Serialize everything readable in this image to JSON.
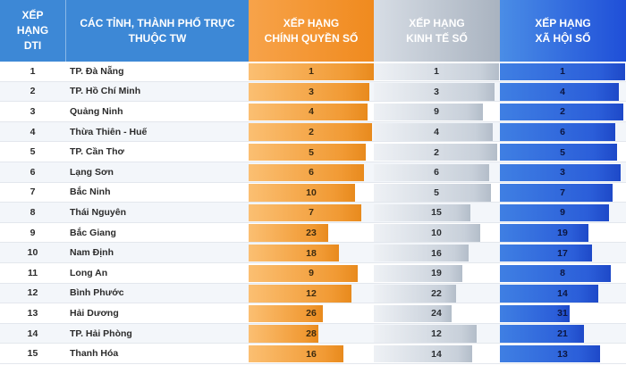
{
  "header": {
    "rank_line1": "XẾP",
    "rank_line2": "HẠNG",
    "rank_line3": "DTI",
    "name_line1": "CÁC TỈNH, THÀNH PHỐ TRỰC",
    "name_line2": "THUỘC TW",
    "gov_line1": "XẾP HẠNG",
    "gov_line2": "CHÍNH QUYỀN SỐ",
    "eco_line1": "XẾP HẠNG",
    "eco_line2": "KINH TẾ SỐ",
    "soc_line1": "XẾP HẠNG",
    "soc_line2": "XÃ HỘI SỐ"
  },
  "colors": {
    "header_blue": "#3d88d6",
    "gov_orange": "#f19a34",
    "eco_gray": "#c8d0da",
    "soc_blue": "#2b5ed9"
  },
  "chart_data": {
    "type": "table",
    "columns": [
      "Xếp hạng DTI",
      "Các tỉnh, thành phố trực thuộc TW",
      "Xếp hạng chính quyền số",
      "Xếp hạng kinh tế số",
      "Xếp hạng xã hội số"
    ],
    "rows": [
      {
        "rank": "1",
        "name": "TP. Đà Nẵng",
        "gov": 1,
        "eco": 1,
        "soc": 1
      },
      {
        "rank": "2",
        "name": "TP. Hồ Chí Minh",
        "gov": 3,
        "eco": 3,
        "soc": 4
      },
      {
        "rank": "3",
        "name": "Quảng Ninh",
        "gov": 4,
        "eco": 9,
        "soc": 2
      },
      {
        "rank": "4",
        "name": "Thừa Thiên - Huế",
        "gov": 2,
        "eco": 4,
        "soc": 6
      },
      {
        "rank": "5",
        "name": "TP. Cần Thơ",
        "gov": 5,
        "eco": 2,
        "soc": 5
      },
      {
        "rank": "6",
        "name": "Lạng Sơn",
        "gov": 6,
        "eco": 6,
        "soc": 3
      },
      {
        "rank": "7",
        "name": "Bắc Ninh",
        "gov": 10,
        "eco": 5,
        "soc": 7
      },
      {
        "rank": "8",
        "name": "Thái Nguyên",
        "gov": 7,
        "eco": 15,
        "soc": 9
      },
      {
        "rank": "9",
        "name": "Bắc Giang",
        "gov": 23,
        "eco": 10,
        "soc": 19
      },
      {
        "rank": "10",
        "name": "Nam Định",
        "gov": 18,
        "eco": 16,
        "soc": 17
      },
      {
        "rank": "11",
        "name": "Long An",
        "gov": 9,
        "eco": 19,
        "soc": 8
      },
      {
        "rank": "12",
        "name": "Bình Phước",
        "gov": 12,
        "eco": 22,
        "soc": 14
      },
      {
        "rank": "13",
        "name": "Hải Dương",
        "gov": 26,
        "eco": 24,
        "soc": 31
      },
      {
        "rank": "14",
        "name": "TP. Hải Phòng",
        "gov": 28,
        "eco": 12,
        "soc": 21
      },
      {
        "rank": "15",
        "name": "Thanh Hóa",
        "gov": 16,
        "eco": 14,
        "soc": 13
      }
    ]
  }
}
